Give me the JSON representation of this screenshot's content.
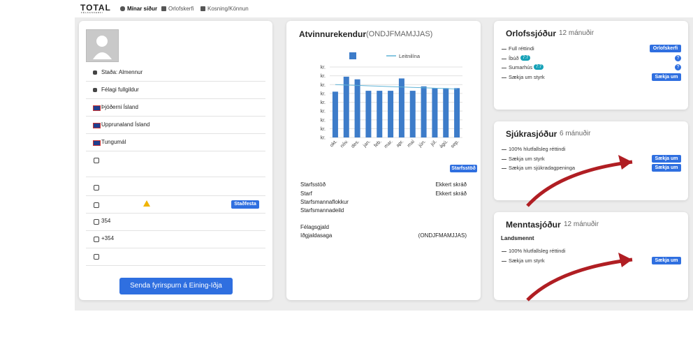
{
  "nav": {
    "logo": "TOTAL",
    "logo_sub": "FÉLAGSKERFI",
    "items": [
      "Mínar síður",
      "Orlofskerfi",
      "Kosning/Könnun"
    ]
  },
  "profile": {
    "rows": [
      "Staða: Almennur",
      "Félagi fullgildur",
      "Þjóðerni Ísland",
      "Upprunaland Ísland",
      "Tungumál"
    ],
    "email_button": "Staðfesta",
    "phone": "354",
    "mobile": "+354",
    "send_button": "Senda fyrirspurn á Eining-Iðja"
  },
  "employers": {
    "title": "Atvinnurekendur",
    "months": "(ONDJFMAMJJAS)",
    "button": "Starfsstöð",
    "rows": [
      [
        "Starfsstöð",
        "Ekkert skráð"
      ],
      [
        "Starf",
        "Ekkert skráð"
      ],
      [
        "Starfsmannaflokkur"
      ],
      [
        "Starfsmannadeild"
      ],
      [
        "Félagsgjald"
      ],
      [
        "Iðgjaldasaga",
        "(ONDJFMAMJJAS)"
      ]
    ]
  },
  "chart_data": {
    "type": "bar",
    "categories": [
      "okt.",
      "nóv.",
      "des.",
      "jan.",
      "feb.",
      "mar.",
      "apr.",
      "maí",
      "jún.",
      "júl.",
      "ágú.",
      "sep."
    ],
    "series": [
      {
        "color": "#3d7cc9",
        "values": [
          5.2,
          6.9,
          6.6,
          5.3,
          5.3,
          5.3,
          6.7,
          5.3,
          5.8,
          5.6,
          5.6,
          5.6
        ]
      },
      {
        "name": "Leitnilína",
        "color": "#5fb3d6",
        "type": "line",
        "values": [
          6.0,
          5.95,
          5.91,
          5.86,
          5.82,
          5.77,
          5.73,
          5.68,
          5.64,
          5.59,
          5.55,
          5.5
        ]
      }
    ],
    "ylim": [
      0,
      8
    ],
    "yticks": [
      {
        "value": 0,
        "label": "kr."
      },
      {
        "value": 1,
        "label": "kr."
      },
      {
        "value": 2,
        "label": "kr."
      },
      {
        "value": 3,
        "label": "kr."
      },
      {
        "value": 4,
        "label": "kr."
      },
      {
        "value": 5,
        "label": "kr."
      },
      {
        "value": 6,
        "label": "kr."
      },
      {
        "value": 7,
        "label": "kr."
      },
      {
        "value": 8,
        "label": "kr."
      }
    ],
    "grid": true
  },
  "funds": [
    {
      "title": "Orlofssjóður",
      "period": "12 mánuðir",
      "items": [
        {
          "label": "Full réttindi",
          "button": "Orlofskerfi"
        },
        {
          "label": "Íbúð",
          "badge": "7:7",
          "help": "?"
        },
        {
          "label": "Sumarhús",
          "badge": "7:7",
          "help": "?"
        },
        {
          "label": "Sækja um styrk",
          "button": "Sækja um"
        }
      ]
    },
    {
      "title": "Sjúkrasjóður",
      "period": "6 mánuðir",
      "items": [
        {
          "label": "100% hlutfallsleg réttindi"
        },
        {
          "label": "Sækja um styrk",
          "button": "Sækja um"
        },
        {
          "label": "Sækja um sjúkradagpeninga",
          "button": "Sækja um"
        }
      ]
    },
    {
      "title": "Menntasjóður",
      "period": "12 mánuðir",
      "subtitle": "Landsmennt",
      "items": [
        {
          "label": "100% hlutfallsleg réttindi"
        },
        {
          "label": "Sækja um styrk",
          "button": "Sækja um"
        }
      ]
    }
  ]
}
